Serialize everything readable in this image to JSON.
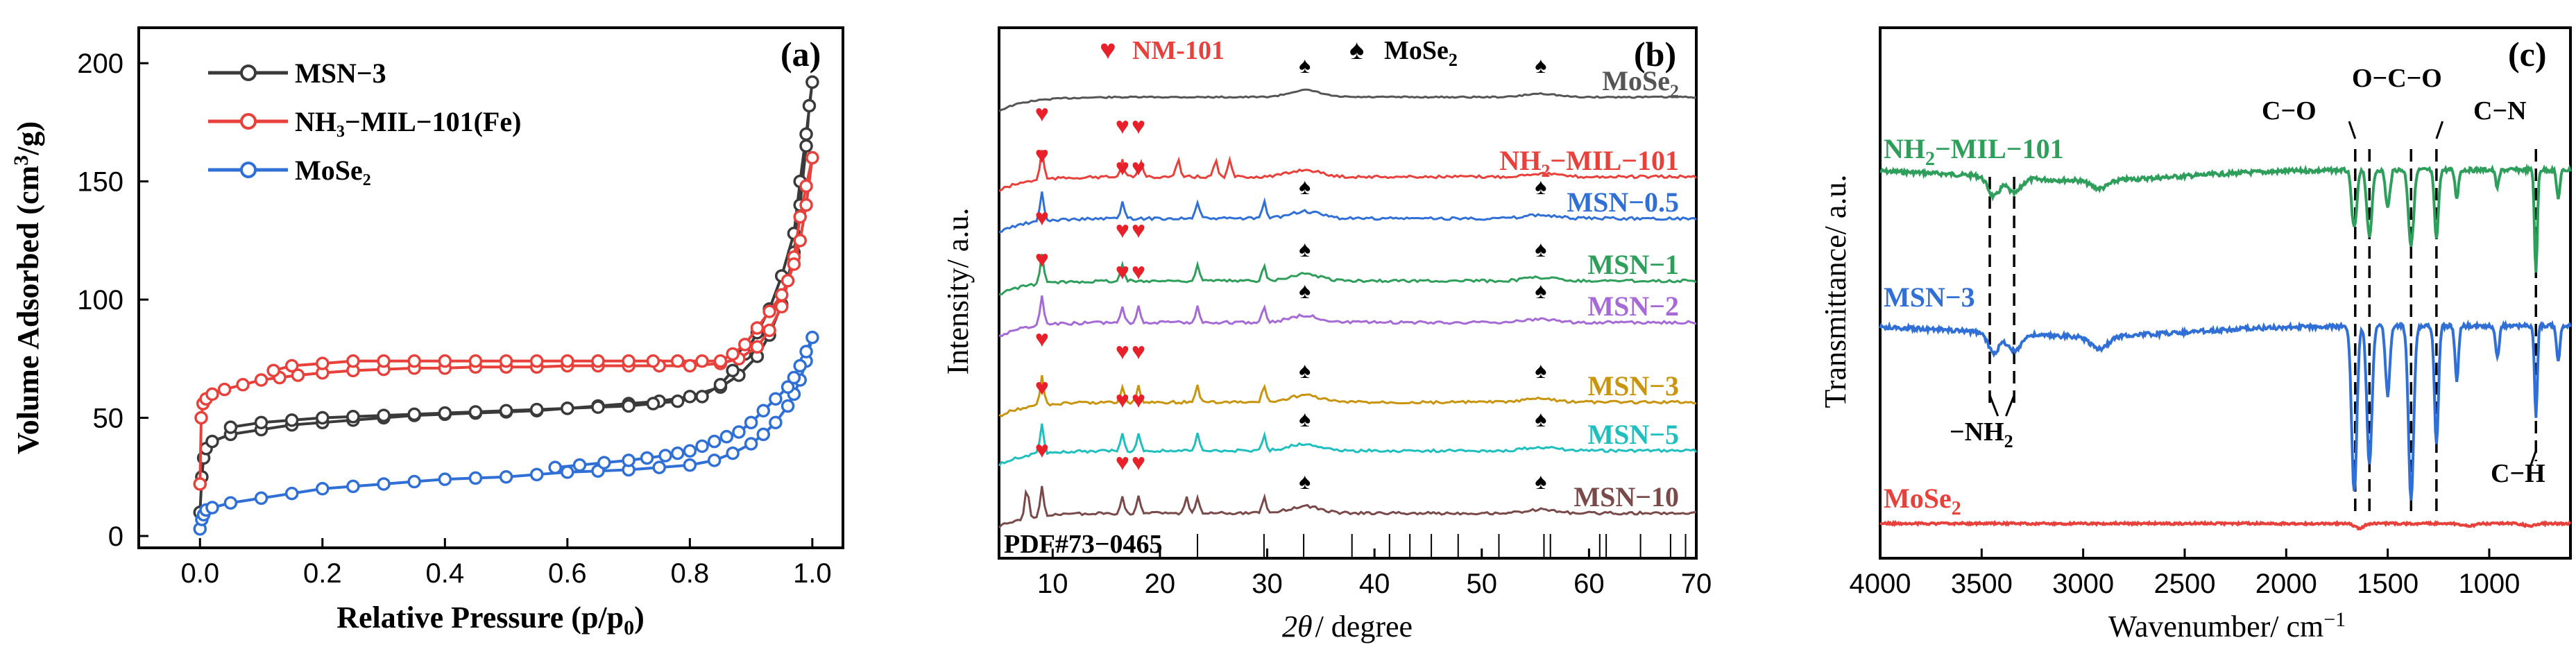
{
  "chart_data": [
    {
      "type": "line",
      "panel_label": "(a)",
      "title": "",
      "xlabel": "Relative Pressure (p/p",
      "xlabel_sub": "0",
      "xlabel_end": ")",
      "ylabel": "Volume Adsorbed (cm",
      "ylabel_sup": "3",
      "ylabel_end": "/g)",
      "xlim": [
        -0.1,
        1.05
      ],
      "ylim": [
        -5,
        215
      ],
      "xticks": [
        "0.0",
        "0.2",
        "0.4",
        "0.6",
        "0.8",
        "1.0"
      ],
      "yticks": [
        "0",
        "50",
        "100",
        "150",
        "200"
      ],
      "legend_position": "top-left",
      "series": [
        {
          "name": "MSN−3",
          "color": "#3a3a3a",
          "x": [
            0.0,
            0.003,
            0.006,
            0.01,
            0.02,
            0.05,
            0.1,
            0.15,
            0.2,
            0.25,
            0.3,
            0.35,
            0.4,
            0.45,
            0.5,
            0.55,
            0.6,
            0.65,
            0.7,
            0.75,
            0.8,
            0.85,
            0.88,
            0.91,
            0.93,
            0.95,
            0.97,
            0.98,
            0.99,
            0.995,
            1.0,
            0.99,
            0.98,
            0.97,
            0.95,
            0.93,
            0.91,
            0.89,
            0.87,
            0.85,
            0.82,
            0.78,
            0.74,
            0.7,
            0.65,
            0.6,
            0.55,
            0.5,
            0.45,
            0.4,
            0.35,
            0.3,
            0.25,
            0.2,
            0.15,
            0.1,
            0.05
          ],
          "y": [
            10,
            25,
            33,
            37,
            40,
            43,
            45,
            47,
            48,
            49,
            50,
            51,
            51.5,
            52,
            52.5,
            53,
            54,
            55,
            56,
            57,
            59,
            63,
            68,
            76,
            85,
            98,
            120,
            140,
            165,
            182,
            192,
            170,
            150,
            128,
            110,
            96,
            86,
            77,
            70,
            64,
            59,
            57,
            56,
            55,
            54.5,
            54,
            53.5,
            53,
            52.5,
            52,
            51.5,
            51,
            50.5,
            50,
            49,
            48,
            46
          ]
        },
        {
          "name": "NH₃−MIL−101(Fe)",
          "color": "#e8403a",
          "x": [
            0.0,
            0.002,
            0.005,
            0.01,
            0.02,
            0.04,
            0.07,
            0.1,
            0.13,
            0.16,
            0.2,
            0.25,
            0.3,
            0.35,
            0.4,
            0.45,
            0.5,
            0.55,
            0.6,
            0.65,
            0.7,
            0.75,
            0.8,
            0.85,
            0.88,
            0.91,
            0.93,
            0.95,
            0.97,
            0.98,
            0.99,
            1.0,
            0.99,
            0.98,
            0.97,
            0.96,
            0.95,
            0.93,
            0.91,
            0.89,
            0.87,
            0.85,
            0.82,
            0.78,
            0.74,
            0.7,
            0.65,
            0.6,
            0.55,
            0.5,
            0.45,
            0.4,
            0.35,
            0.3,
            0.25,
            0.2,
            0.15,
            0.12
          ],
          "y": [
            22,
            50,
            56,
            58,
            60,
            62,
            64,
            66,
            67,
            68,
            69,
            70,
            70.5,
            71,
            71,
            71.5,
            71.5,
            71.5,
            72,
            72,
            72,
            72,
            72,
            73,
            75,
            80,
            87,
            97,
            118,
            135,
            148,
            160,
            140,
            125,
            115,
            108,
            102,
            95,
            88,
            81,
            77,
            74,
            74,
            74,
            74,
            74,
            74,
            74,
            74,
            74,
            74,
            74,
            74,
            74,
            74,
            73,
            72,
            70
          ]
        },
        {
          "name": "MoSe₂",
          "color": "#2f6fd6",
          "x": [
            0.0,
            0.003,
            0.006,
            0.01,
            0.02,
            0.05,
            0.1,
            0.15,
            0.2,
            0.25,
            0.3,
            0.35,
            0.4,
            0.45,
            0.5,
            0.55,
            0.6,
            0.65,
            0.7,
            0.75,
            0.8,
            0.84,
            0.87,
            0.9,
            0.92,
            0.94,
            0.96,
            0.97,
            0.98,
            0.99,
            1.0,
            0.99,
            0.98,
            0.97,
            0.96,
            0.94,
            0.92,
            0.9,
            0.88,
            0.86,
            0.84,
            0.82,
            0.8,
            0.78,
            0.76,
            0.73,
            0.7,
            0.66,
            0.62,
            0.58
          ],
          "y": [
            3,
            7,
            9,
            11,
            12,
            14,
            16,
            18,
            20,
            21,
            22,
            23,
            24,
            24.5,
            25,
            26,
            27,
            27.5,
            28,
            29,
            30,
            32,
            35,
            39,
            43,
            48,
            55,
            60,
            66,
            74,
            84,
            78,
            72,
            67,
            63,
            58,
            53,
            48,
            44,
            42,
            40,
            38,
            36,
            35,
            34,
            33,
            32,
            31,
            30,
            29
          ]
        }
      ]
    },
    {
      "type": "line",
      "panel_label": "(b)",
      "title": "",
      "xlabel_theta": "2θ",
      "xlabel_rest": "/ degree",
      "ylabel": "Intensity/ a.u.",
      "xlim": [
        5,
        70
      ],
      "xticks": [
        "10",
        "20",
        "30",
        "40",
        "50",
        "60",
        "70"
      ],
      "legend": {
        "heart_label": "NM-101",
        "spade_label": "MoSe",
        "spade_sub": "2"
      },
      "reference_label": "PDF#73−0465",
      "reference_peaks": [
        23.5,
        29.7,
        33.4,
        37.9,
        41.4,
        43.3,
        45.3,
        47.8,
        51.6,
        55.8,
        56.4,
        61.0,
        61.6,
        64.8,
        67.6,
        69.0
      ],
      "heart_markers": [
        9.0,
        16.5,
        18.0
      ],
      "spade_markers": [
        33.8,
        55.7
      ],
      "series": [
        {
          "name": "MoSe",
          "sub": "2",
          "color": "#555555",
          "peaks": [],
          "spade_peaks": [
            33.5,
            55.5
          ],
          "heart": false
        },
        {
          "name": "NH",
          "sub": "2",
          "name_end": "−MIL−101",
          "color": "#e8403a",
          "peaks": [
            9.0,
            16.5,
            18.2,
            21.7,
            25.2,
            26.5
          ],
          "spade_peaks": [],
          "heart": true
        },
        {
          "name": "MSN−0.5",
          "color": "#2f6fd6",
          "peaks": [
            9.0,
            16.5,
            23.5,
            29.7
          ],
          "spade_peaks": [
            33.5,
            55.5
          ],
          "heart": true
        },
        {
          "name": "MSN−1",
          "color": "#2e9e5b",
          "peaks": [
            9.0,
            16.5,
            23.5,
            29.7
          ],
          "spade_peaks": [
            33.5,
            55.5
          ],
          "heart": true
        },
        {
          "name": "MSN−2",
          "color": "#a56ad6",
          "peaks": [
            9.0,
            16.5,
            18.0,
            23.5,
            29.7
          ],
          "spade_peaks": [
            33.5,
            55.5
          ],
          "heart": true
        },
        {
          "name": "MSN−3",
          "color": "#c9940e",
          "peaks": [
            9.0,
            16.5,
            18.0,
            23.5,
            29.7
          ],
          "spade_peaks": [
            33.5,
            55.5
          ],
          "heart": true
        },
        {
          "name": "MSN−5",
          "color": "#1fbfbf",
          "peaks": [
            9.0,
            16.5,
            18.0,
            23.5,
            29.7
          ],
          "spade_peaks": [
            33.5,
            55.5
          ],
          "heart": true
        },
        {
          "name": "MSN−10",
          "color": "#7a4a4a",
          "peaks": [
            7.6,
            9.0,
            16.5,
            18.0,
            22.5,
            23.5,
            29.7
          ],
          "spade_peaks": [
            33.5,
            55.5
          ],
          "heart": true
        }
      ]
    },
    {
      "type": "line",
      "panel_label": "(c)",
      "title": "",
      "xlabel": "Wavenumber/ cm",
      "xlabel_sup": "−1",
      "ylabel": "Transmittance/ a.u.",
      "xlim": [
        4000,
        600
      ],
      "xticks": [
        "4000",
        "3500",
        "3000",
        "2500",
        "2000",
        "1500",
        "1000"
      ],
      "annotations": {
        "co": "C−O",
        "oco": "O−C−O",
        "cn": "C−N",
        "nh2": "−NH",
        "nh2_sub": "2",
        "ch": "C−H"
      },
      "dashed_lines": [
        3460,
        3340,
        1660,
        1590,
        1385,
        1260,
        770
      ],
      "series": [
        {
          "name": "NH",
          "sub": "2",
          "name_end": "−MIL−101",
          "color": "#2e9e5b"
        },
        {
          "name": "MSN−3",
          "color": "#2f6fd6"
        },
        {
          "name": "MoSe",
          "sub": "2",
          "color": "#e8403a"
        }
      ]
    }
  ]
}
